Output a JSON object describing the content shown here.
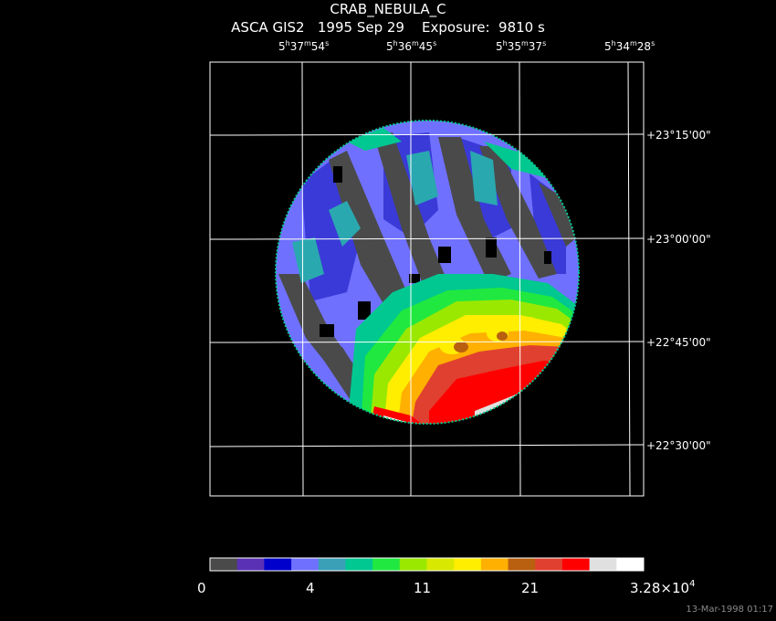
{
  "title": {
    "object": "CRAB_NEBULA_C",
    "subtitle": "ASCA GIS2   1995 Sep 29    Exposure:  9810 s"
  },
  "ra_ticks": [
    {
      "h": "5",
      "m": "37",
      "s": "54"
    },
    {
      "h": "5",
      "m": "36",
      "s": "45"
    },
    {
      "h": "5",
      "m": "35",
      "s": "37"
    },
    {
      "h": "5",
      "m": "34",
      "s": "28"
    }
  ],
  "dec_ticks": [
    "+23°15'00\"",
    "+23°00'00\"",
    "+22°45'00\"",
    "+22°30'00\""
  ],
  "colorbar": {
    "colors": [
      "#4a4a4a",
      "#5a30b4",
      "#0000cc",
      "#7070ff",
      "#3aa0b8",
      "#00c890",
      "#20e840",
      "#9ae800",
      "#d8e800",
      "#ffee00",
      "#ffb000",
      "#b86010",
      "#e04030",
      "#ff0000",
      "#e0e0e0",
      "#ffffff"
    ],
    "labels": [
      "0",
      "4",
      "11",
      "21",
      "3.28×10"
    ],
    "label_exponent": "4"
  },
  "timestamp": "13-Mar-1998 01:17",
  "image_map": {
    "kind": "X-ray count map of a circular field of view",
    "description": "circular detector image with blue/purple and grey stripe pattern in upper half and green-yellow-red bright emission toward the lower part"
  }
}
